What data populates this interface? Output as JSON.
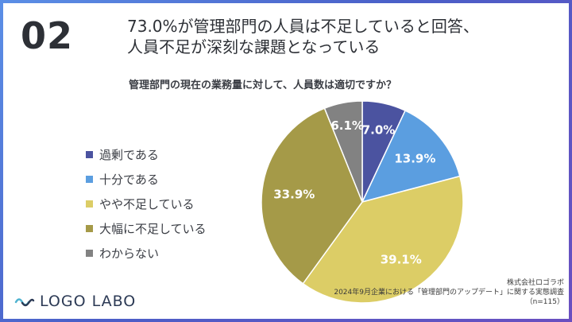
{
  "slide": {
    "number": "02",
    "headline_line1": "73.0%が管理部門の人員は不足していると回答、",
    "headline_line2": "人員不足が深刻な課題となっている",
    "question": "管理部門の現在の業務量に対して、人員数は適切ですか？"
  },
  "legend": [
    {
      "label": "過剰である",
      "color": "#4b53a0"
    },
    {
      "label": "十分である",
      "color": "#5b9ee0"
    },
    {
      "label": "やや不足している",
      "color": "#dccd66"
    },
    {
      "label": "大幅に不足している",
      "color": "#a59a48"
    },
    {
      "label": "わからない",
      "color": "#828282"
    }
  ],
  "chart_data": {
    "type": "pie",
    "title": "管理部門の現在の業務量に対して、人員数は適切ですか？",
    "categories": [
      "過剰である",
      "十分である",
      "やや不足している",
      "大幅に不足している",
      "わからない"
    ],
    "values": [
      7.0,
      13.9,
      39.1,
      33.9,
      6.1
    ],
    "data_labels": [
      "7.0%",
      "13.9%",
      "39.1%",
      "33.9%",
      "6.1%"
    ],
    "colors": [
      "#4b53a0",
      "#5b9ee0",
      "#dccd66",
      "#a59a48",
      "#828282"
    ],
    "legend_position": "left"
  },
  "logo": {
    "text": "LOGO LABO"
  },
  "source": {
    "company": "株式会社ロゴラボ",
    "survey": "2024年9月企業における「管理部門のアップデート」に関する実態調査",
    "sample": "（n=115）"
  }
}
